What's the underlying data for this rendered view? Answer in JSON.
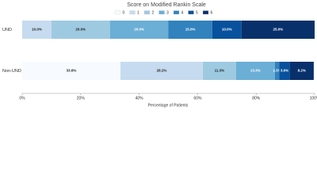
{
  "chart_data": {
    "type": "stacked-bar-horizontal",
    "legend_title": "Score on Modified Rankin Scale",
    "xlabel": "Percentage of Patients",
    "categories": [
      "UND",
      "Non-UND"
    ],
    "series": [
      {
        "name": "0",
        "color": "#f7fbff",
        "values": [
          0,
          33.6
        ],
        "value_labels": [
          null,
          "33.6%"
        ]
      },
      {
        "name": "1",
        "color": "#c6dbef",
        "values": [
          10.0,
          28.2
        ],
        "value_labels": [
          "10.0%",
          "28.2%"
        ]
      },
      {
        "name": "2",
        "color": "#9ecae1",
        "values": [
          20.0,
          11.3
        ],
        "value_labels": [
          "20.0%",
          "11.3%"
        ]
      },
      {
        "name": "3",
        "color": "#6baed6",
        "values": [
          20.0,
          13.3
        ],
        "value_labels": [
          "20.0%",
          "13.3%"
        ]
      },
      {
        "name": "4",
        "color": "#3182bd",
        "values": [
          15.0,
          1.5
        ],
        "value_labels": [
          "15.0%",
          "1.5%"
        ]
      },
      {
        "name": "5",
        "color": "#08519c",
        "values": [
          10.0,
          3.6
        ],
        "value_labels": [
          "10.0%",
          "3.6%"
        ]
      },
      {
        "name": "6",
        "color": "#08306b",
        "values": [
          25.0,
          8.2
        ],
        "value_labels": [
          "25.0%",
          "8.2%"
        ]
      }
    ],
    "xlim": [
      0,
      100
    ],
    "xticks": [
      {
        "value": 0,
        "label": "0%"
      },
      {
        "value": 20,
        "label": "20%"
      },
      {
        "value": 40,
        "label": "40%"
      },
      {
        "value": 60,
        "label": "60%"
      },
      {
        "value": 80,
        "label": "80%"
      },
      {
        "value": 100,
        "label": "100%"
      }
    ]
  }
}
